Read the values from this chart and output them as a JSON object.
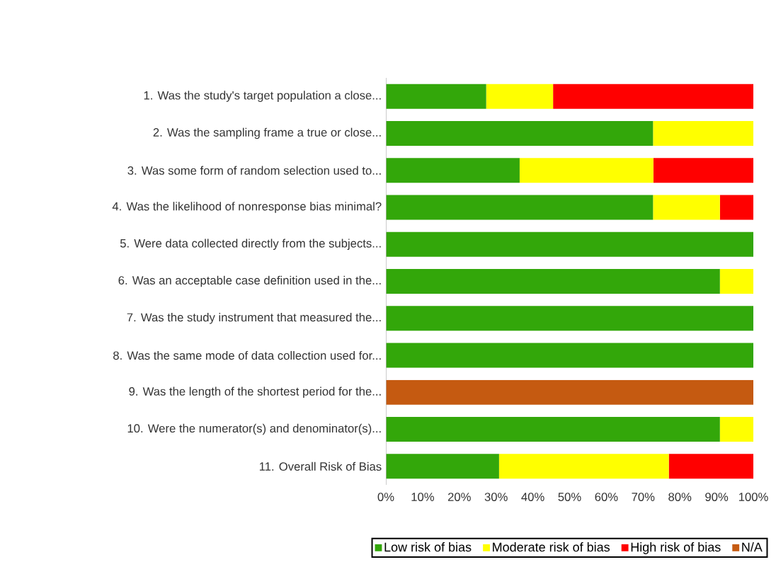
{
  "chart_data": {
    "type": "bar",
    "orientation": "horizontal",
    "stacked": true,
    "categories": [
      "1. Was the study's target population a close...",
      "2. Was the sampling frame a true or close...",
      "3. Was some form of random selection used to...",
      "4. Was the likelihood of nonresponse bias minimal?",
      "5. Were data collected directly from the subjects...",
      "6. Was an acceptable case definition used in the...",
      "7. Was the study instrument that measured the...",
      "8. Was the same mode of data collection used for...",
      "9. Was the length of the shortest period for the...",
      "10. Were the numerator(s) and denominator(s)...",
      "11. Overall Risk of Bias"
    ],
    "series": [
      {
        "name": "Low risk of bias",
        "color": "#33a70a",
        "values": [
          27.3,
          72.7,
          36.4,
          72.7,
          100,
          90.9,
          100,
          100,
          0,
          90.9,
          30.8
        ]
      },
      {
        "name": "Moderate risk of bias",
        "color": "#ffff00",
        "values": [
          18.2,
          27.3,
          36.4,
          18.2,
          0,
          9.1,
          0,
          0,
          0,
          9.1,
          46.2
        ]
      },
      {
        "name": "High risk of bias",
        "color": "#ff0000",
        "values": [
          54.5,
          0,
          27.3,
          9.1,
          0,
          0,
          0,
          0,
          0,
          0,
          23.1
        ]
      },
      {
        "name": "N/A",
        "color": "#c55a11",
        "values": [
          0,
          0,
          0,
          0,
          0,
          0,
          0,
          0,
          100,
          0,
          0
        ]
      }
    ],
    "xlim": [
      0,
      100
    ],
    "xticks": [
      {
        "value": 0,
        "label": "0%"
      },
      {
        "value": 10,
        "label": "10%"
      },
      {
        "value": 20,
        "label": "20%"
      },
      {
        "value": 30,
        "label": "30%"
      },
      {
        "value": 40,
        "label": "40%"
      },
      {
        "value": 50,
        "label": "50%"
      },
      {
        "value": 60,
        "label": "60%"
      },
      {
        "value": 70,
        "label": "70%"
      },
      {
        "value": 80,
        "label": "80%"
      },
      {
        "value": 90,
        "label": "90%"
      },
      {
        "value": 100,
        "label": "100%"
      }
    ],
    "legend": "bottom",
    "grid": false
  }
}
